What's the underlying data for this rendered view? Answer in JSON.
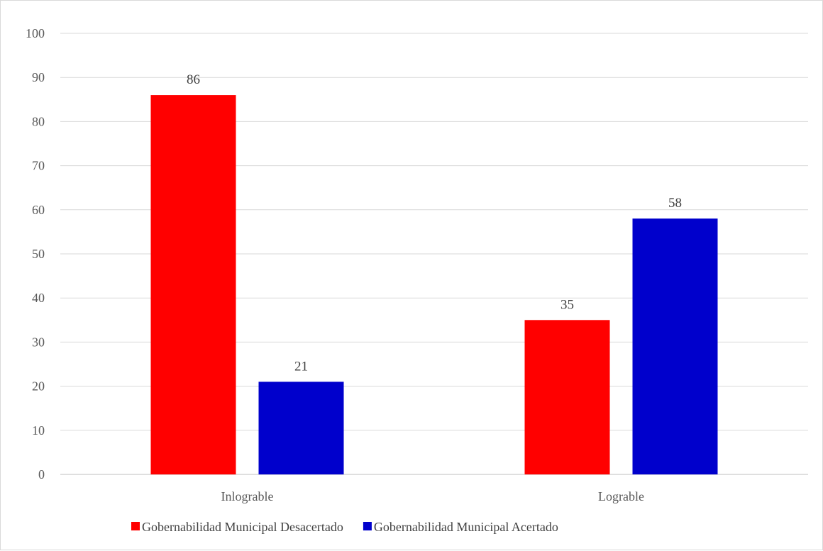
{
  "chart_data": {
    "type": "bar",
    "categories": [
      "Inlograble",
      "Lograble"
    ],
    "series": [
      {
        "name": "Gobernabilidad Municipal Desacertado",
        "color": "#ff0000",
        "values": [
          86,
          35
        ]
      },
      {
        "name": "Gobernabilidad Municipal Acertado",
        "color": "#0000cc",
        "values": [
          21,
          58
        ]
      }
    ],
    "ylim": [
      0,
      100
    ],
    "yticks": [
      0,
      10,
      20,
      30,
      40,
      50,
      60,
      70,
      80,
      90,
      100
    ],
    "grid": true,
    "legend_position": "bottom",
    "data_labels": true,
    "title": "",
    "xlabel": "",
    "ylabel": ""
  }
}
